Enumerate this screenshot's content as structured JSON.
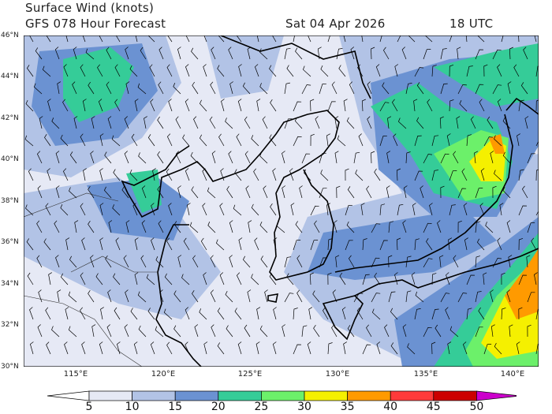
{
  "header": {
    "title": "Surface Wind (knots)",
    "model": "GFS 078 Hour Forecast",
    "date": "Sat 04 Apr 2026",
    "time": "18 UTC"
  },
  "map": {
    "lat_labels": [
      "46°N",
      "44°N",
      "42°N",
      "40°N",
      "38°N",
      "36°N",
      "34°N",
      "32°N",
      "30°N"
    ],
    "lon_labels": [
      "115°E",
      "120°E",
      "125°E",
      "130°E",
      "135°E",
      "140°E"
    ],
    "lat_range": [
      30,
      46
    ],
    "lon_range": [
      112,
      141.6
    ]
  },
  "colorbar": {
    "ticks": [
      "5",
      "10",
      "15",
      "20",
      "25",
      "30",
      "35",
      "40",
      "45",
      "50"
    ],
    "colors": [
      "#ffffff",
      "#e6e9f5",
      "#b2c3e6",
      "#6b92d2",
      "#35cc98",
      "#6cf06a",
      "#f5f000",
      "#ff9a00",
      "#ff3a3a",
      "#cc0000",
      "#cc00cc"
    ]
  }
}
